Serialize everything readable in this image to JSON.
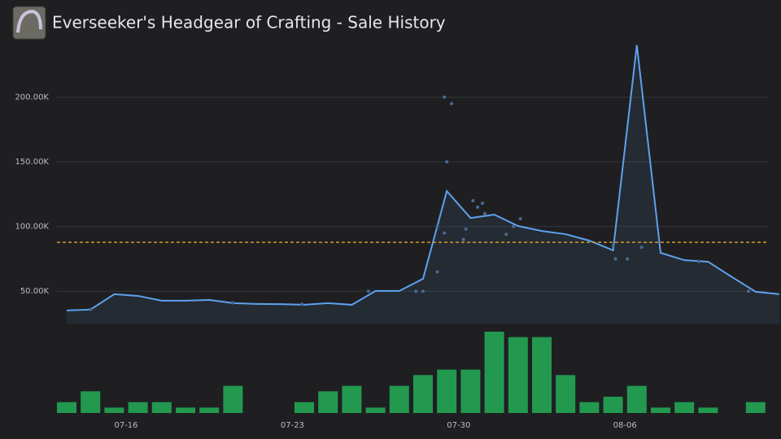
{
  "chart_data": {
    "type": "line",
    "title": "Everseeker's Headgear of Crafting - Sale History",
    "categories": [
      null,
      null,
      null,
      "07-16",
      null,
      null,
      null,
      null,
      null,
      null,
      "07-23",
      null,
      null,
      null,
      null,
      null,
      null,
      "07-30",
      null,
      null,
      null,
      null,
      null,
      null,
      "08-06",
      null,
      null,
      null,
      null,
      null,
      null
    ],
    "ylim": [
      25000,
      250000
    ],
    "yticks": [
      {
        "value": 50000,
        "label": "50.00K"
      },
      {
        "value": 100000,
        "label": "100.00K"
      },
      {
        "value": 150000,
        "label": "150.00K"
      },
      {
        "value": 200000,
        "label": "200.00K"
      }
    ],
    "grid": true,
    "y2lim": [
      0,
      15
    ],
    "series": [
      {
        "type": "line",
        "color": "#5ea1ee",
        "values": [
          35100,
          35800,
          47700,
          46400,
          42700,
          42700,
          43300,
          40800,
          40200,
          40000,
          39500,
          40800,
          39500,
          50200,
          50200,
          59600,
          127400,
          106600,
          109200,
          100400,
          96600,
          94100,
          89100,
          81600,
          240300,
          79700,
          74000,
          72800,
          61000,
          49600,
          47700
        ]
      },
      {
        "type": "bar",
        "axis": "y2",
        "color": "#22994f",
        "values": [
          2,
          4,
          1,
          2,
          2,
          1,
          1,
          5,
          0,
          0,
          2,
          4,
          5,
          1,
          5,
          7,
          8,
          8,
          15,
          14,
          14,
          7,
          2,
          3,
          5,
          1,
          2,
          1,
          0,
          2,
          0
        ]
      }
    ],
    "points": {
      "type": "scatter",
      "color": "#4a6a94",
      "x": [
        15.9,
        16.2,
        16.0,
        15.6,
        15.9,
        15.6,
        17.1,
        17.3,
        17.5,
        17.6,
        16.8,
        16.7,
        19.1,
        18.5,
        18.8,
        23.1,
        23.0,
        23.6,
        24.2,
        15.0,
        14.7,
        12.7,
        26.6,
        28.7,
        1.0,
        7.0,
        9.9
      ],
      "values": [
        200000,
        195000,
        150000,
        100000,
        95000,
        65000,
        120000,
        115000,
        118000,
        110000,
        98000,
        90000,
        106000,
        94000,
        100000,
        75000,
        85000,
        75000,
        84000,
        50000,
        50000,
        50000,
        73000,
        50000,
        36000,
        41000,
        40000
      ]
    },
    "reference_line": {
      "value": 87800,
      "color": "#e0a72a"
    }
  }
}
